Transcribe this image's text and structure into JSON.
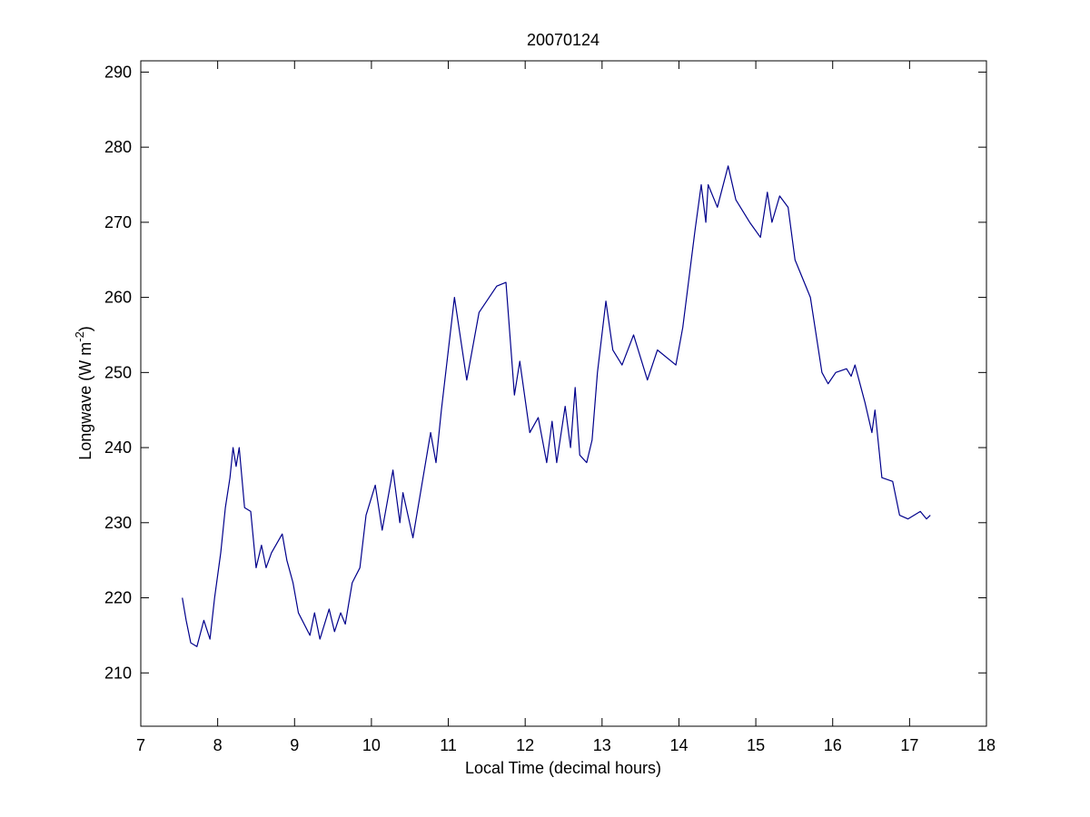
{
  "chart_data": {
    "type": "line",
    "title": "20070124",
    "xlabel": "Local Time (decimal hours)",
    "ylabel": {
      "text": "Longwave (W m",
      "superscript": "-2",
      "end": ")"
    },
    "xlim": [
      7,
      18
    ],
    "ylim": [
      202.9,
      291.5
    ],
    "xticks": [
      7,
      8,
      9,
      10,
      11,
      12,
      13,
      14,
      15,
      16,
      17,
      18
    ],
    "yticks": [
      210,
      220,
      230,
      240,
      250,
      260,
      270,
      280,
      290
    ],
    "x": [
      7.54,
      7.59,
      7.65,
      7.73,
      7.82,
      7.9,
      7.96,
      8.04,
      8.1,
      8.16,
      8.2,
      8.24,
      8.28,
      8.35,
      8.43,
      8.5,
      8.57,
      8.63,
      8.7,
      8.84,
      8.9,
      8.98,
      9.05,
      9.2,
      9.26,
      9.33,
      9.45,
      9.52,
      9.6,
      9.66,
      9.75,
      9.85,
      9.93,
      10.05,
      10.14,
      10.28,
      10.37,
      10.41,
      10.54,
      10.77,
      10.84,
      10.91,
      11.08,
      11.24,
      11.4,
      11.63,
      11.75,
      11.86,
      11.93,
      12.06,
      12.17,
      12.28,
      12.35,
      12.41,
      12.52,
      12.59,
      12.65,
      12.71,
      12.8,
      12.87,
      12.94,
      13.05,
      13.14,
      13.26,
      13.41,
      13.59,
      13.72,
      13.96,
      14.05,
      14.21,
      14.29,
      14.35,
      14.38,
      14.5,
      14.64,
      14.74,
      14.92,
      15.06,
      15.15,
      15.21,
      15.31,
      15.42,
      15.51,
      15.71,
      15.86,
      15.94,
      16.04,
      16.18,
      16.24,
      16.29,
      16.42,
      16.51,
      16.55,
      16.64,
      16.78,
      16.87,
      16.98,
      17.14,
      17.22,
      17.27
    ],
    "series": [
      {
        "name": "Longwave",
        "color": "#00008b",
        "values": [
          220,
          217,
          214,
          213.5,
          217,
          214.5,
          220,
          226,
          232,
          236,
          240,
          237.5,
          240,
          232,
          231.5,
          224,
          227,
          224,
          226,
          228.5,
          225,
          222,
          218,
          215,
          218,
          214.5,
          218.5,
          215.5,
          218,
          216.5,
          222,
          224,
          231,
          235,
          229,
          237,
          230,
          234,
          228,
          242,
          238,
          245,
          260,
          249,
          258,
          261.5,
          262,
          247,
          251.5,
          242,
          244,
          238,
          243.5,
          238,
          245.5,
          240,
          248,
          239,
          238,
          241,
          250,
          259.5,
          253,
          251,
          255,
          249,
          253,
          251,
          256,
          269,
          275,
          270,
          275,
          272,
          277.5,
          273,
          270,
          268,
          274,
          270,
          273.5,
          272,
          265,
          260,
          250,
          248.5,
          250,
          250.5,
          249.5,
          251,
          246,
          242,
          245,
          236,
          235.5,
          231,
          230.5,
          231.5,
          230.5,
          231
        ]
      }
    ]
  }
}
